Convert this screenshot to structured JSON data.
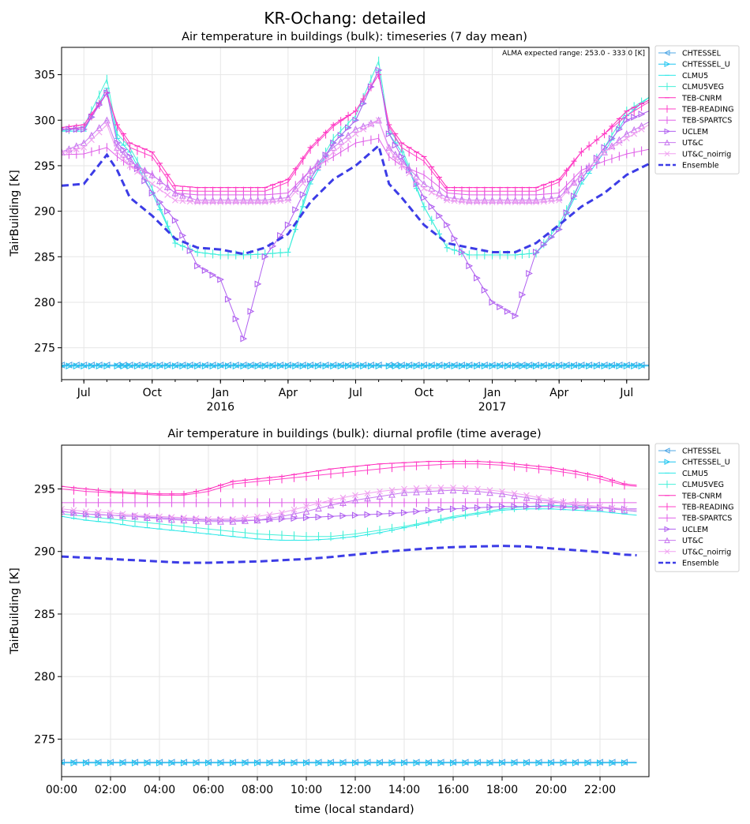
{
  "figure": {
    "suptitle": "KR-Ochang: detailed"
  },
  "chart_data": [
    {
      "type": "line",
      "title": "Air temperature in buildings (bulk): timeseries (7 day mean)",
      "xlabel": "",
      "ylabel": "TairBuilding [K]",
      "annotation": "ALMA expected range: 253.0 - 333.0 [K]",
      "xlim": [
        "2015-06-01",
        "2017-07-31"
      ],
      "ylim": [
        271.5,
        308
      ],
      "yticks": [
        275,
        280,
        285,
        290,
        295,
        300,
        305
      ],
      "xticks": [
        {
          "date": "2015-07-01",
          "label": "Jul",
          "sub": ""
        },
        {
          "date": "2015-10-01",
          "label": "Oct",
          "sub": ""
        },
        {
          "date": "2016-01-01",
          "label": "Jan",
          "sub": "2016"
        },
        {
          "date": "2016-04-01",
          "label": "Apr",
          "sub": ""
        },
        {
          "date": "2016-07-01",
          "label": "Jul",
          "sub": ""
        },
        {
          "date": "2016-10-01",
          "label": "Oct",
          "sub": ""
        },
        {
          "date": "2017-01-01",
          "label": "Jan",
          "sub": "2017"
        },
        {
          "date": "2017-04-01",
          "label": "Apr",
          "sub": ""
        },
        {
          "date": "2017-07-01",
          "label": "Jul",
          "sub": ""
        }
      ],
      "legend_position": "outside-right",
      "grid": true,
      "x": [
        "2015-06-01",
        "2015-07-01",
        "2015-08-01",
        "2015-08-15",
        "2015-09-01",
        "2015-10-01",
        "2015-11-01",
        "2015-12-01",
        "2016-01-01",
        "2016-02-01",
        "2016-03-01",
        "2016-04-01",
        "2016-05-01",
        "2016-06-01",
        "2016-07-01",
        "2016-08-01",
        "2016-08-15",
        "2016-09-01",
        "2016-10-01",
        "2016-11-01",
        "2016-12-01",
        "2017-01-01",
        "2017-02-01",
        "2017-03-01",
        "2017-04-01",
        "2017-05-01",
        "2017-06-01",
        "2017-07-01",
        "2017-07-31"
      ],
      "series": [
        {
          "name": "CHTESSEL",
          "color": "#52a8e6",
          "style": "solid",
          "marker": "tri-left",
          "values": [
            273.1,
            273.1,
            273.1,
            273.1,
            273.1,
            273.1,
            273.1,
            273.1,
            273.1,
            273.1,
            273.1,
            273.1,
            273.1,
            273.1,
            273.1,
            273.1,
            273.1,
            273.1,
            273.1,
            273.1,
            273.1,
            273.1,
            273.1,
            273.1,
            273.1,
            273.1,
            273.1,
            273.1,
            273.1
          ]
        },
        {
          "name": "CHTESSEL_U",
          "color": "#1fc6f0",
          "style": "solid",
          "marker": "tri-right",
          "values": [
            273.0,
            273.0,
            273.0,
            273.0,
            273.0,
            273.0,
            273.0,
            273.0,
            273.0,
            273.0,
            273.0,
            273.0,
            273.0,
            273.0,
            273.0,
            273.0,
            273.0,
            273.0,
            273.0,
            273.0,
            273.0,
            273.0,
            273.0,
            273.0,
            273.0,
            273.0,
            273.0,
            273.0,
            273.0
          ]
        },
        {
          "name": "CLMU5",
          "color": "#2ee8e8",
          "style": "solid",
          "marker": "dash",
          "values": [
            298.8,
            298.8,
            303.5,
            298.0,
            296.5,
            292.0,
            286.5,
            285.5,
            285.2,
            285.2,
            285.3,
            285.5,
            293.0,
            297.5,
            300.0,
            305.5,
            298.5,
            296.5,
            290.5,
            286.0,
            285.2,
            285.2,
            285.2,
            285.4,
            288.0,
            293.0,
            296.5,
            300.5,
            302.5
          ]
        },
        {
          "name": "CLMU5VEG",
          "color": "#44f0d8",
          "style": "solid",
          "marker": "vbar",
          "values": [
            298.8,
            299.3,
            304.5,
            298.5,
            297.0,
            292.5,
            286.5,
            285.5,
            285.2,
            285.2,
            285.3,
            285.5,
            293.5,
            298.0,
            300.5,
            306.5,
            299.0,
            297.0,
            290.5,
            286.0,
            285.2,
            285.2,
            285.2,
            285.4,
            288.5,
            293.5,
            297.0,
            301.0,
            302.5
          ]
        },
        {
          "name": "TEB-CNRM",
          "color": "#ff2cbc",
          "style": "solid",
          "marker": "dash",
          "values": [
            299.2,
            299.5,
            303.0,
            299.5,
            297.5,
            296.5,
            292.8,
            292.6,
            292.6,
            292.6,
            292.6,
            293.5,
            297.0,
            299.5,
            301.0,
            305.0,
            299.5,
            297.5,
            296.0,
            292.6,
            292.6,
            292.6,
            292.6,
            292.6,
            293.5,
            296.5,
            298.5,
            301.0,
            302.2
          ]
        },
        {
          "name": "TEB-READING",
          "color": "#ff40c8",
          "style": "solid",
          "marker": "vbar",
          "values": [
            299.0,
            299.2,
            303.0,
            299.3,
            297.0,
            296.0,
            292.3,
            292.2,
            292.2,
            292.2,
            292.2,
            293.2,
            296.8,
            299.3,
            301.0,
            305.0,
            299.3,
            297.0,
            295.5,
            292.3,
            292.2,
            292.2,
            292.2,
            292.2,
            293.2,
            296.5,
            298.5,
            300.5,
            302.0
          ]
        },
        {
          "name": "TEB-SPARTCS",
          "color": "#e060e8",
          "style": "solid",
          "marker": "vbar",
          "values": [
            296.2,
            296.3,
            297.0,
            296.0,
            295.0,
            294.0,
            292.0,
            291.8,
            291.8,
            291.8,
            291.8,
            292.0,
            294.5,
            296.0,
            297.5,
            298.0,
            296.0,
            295.0,
            294.0,
            292.0,
            291.8,
            291.8,
            291.8,
            291.8,
            292.0,
            294.5,
            295.5,
            296.3,
            296.8
          ]
        },
        {
          "name": "UCLEM",
          "color": "#b060f0",
          "style": "solid",
          "marker": "tri-right",
          "values": [
            299.0,
            299.0,
            303.0,
            297.5,
            296.0,
            292.0,
            289.0,
            284.0,
            282.5,
            276.0,
            285.0,
            288.5,
            293.5,
            297.5,
            300.0,
            305.5,
            298.5,
            296.0,
            291.5,
            288.5,
            284.0,
            280.0,
            278.5,
            285.5,
            288.0,
            293.5,
            297.0,
            300.0,
            301.0
          ]
        },
        {
          "name": "UT&C",
          "color": "#c878f0",
          "style": "solid",
          "marker": "tri-up",
          "values": [
            296.5,
            297.5,
            300.0,
            297.0,
            295.5,
            294.0,
            292.0,
            291.2,
            291.2,
            291.2,
            291.2,
            291.5,
            294.5,
            297.0,
            299.0,
            300.0,
            297.0,
            295.5,
            293.0,
            291.5,
            291.2,
            291.2,
            291.2,
            291.2,
            291.5,
            294.0,
            296.5,
            298.5,
            299.8
          ]
        },
        {
          "name": "UT&C_noirrig",
          "color": "#f0a0f0",
          "style": "solid",
          "marker": "x",
          "values": [
            296.4,
            297.0,
            299.5,
            296.5,
            295.0,
            293.0,
            291.2,
            291.0,
            291.0,
            291.0,
            291.0,
            291.2,
            294.0,
            296.5,
            298.5,
            300.0,
            296.8,
            295.0,
            292.5,
            291.2,
            291.0,
            291.0,
            291.0,
            291.0,
            291.2,
            294.0,
            296.5,
            298.0,
            299.5
          ]
        },
        {
          "name": "Ensemble",
          "color": "#3c3ce6",
          "style": "dashed",
          "marker": "none",
          "values": [
            292.8,
            293.0,
            296.2,
            294.5,
            291.5,
            289.5,
            287.0,
            286.0,
            285.8,
            285.3,
            286.0,
            287.5,
            291.0,
            293.5,
            295.0,
            297.2,
            293.0,
            291.5,
            288.5,
            286.5,
            286.0,
            285.5,
            285.5,
            286.5,
            288.5,
            290.5,
            292.0,
            294.0,
            295.2
          ]
        }
      ]
    },
    {
      "type": "line",
      "title": "Air temperature in buildings (bulk): diurnal profile (time average)",
      "xlabel": "time (local standard)",
      "ylabel": "TairBuilding [K]",
      "xlim": [
        0,
        24
      ],
      "ylim": [
        272,
        298.5
      ],
      "yticks": [
        275,
        280,
        285,
        290,
        295
      ],
      "xticks": [
        {
          "value": 0,
          "label": "00:00"
        },
        {
          "value": 2,
          "label": "02:00"
        },
        {
          "value": 4,
          "label": "04:00"
        },
        {
          "value": 6,
          "label": "06:00"
        },
        {
          "value": 8,
          "label": "08:00"
        },
        {
          "value": 10,
          "label": "10:00"
        },
        {
          "value": 12,
          "label": "12:00"
        },
        {
          "value": 14,
          "label": "14:00"
        },
        {
          "value": 16,
          "label": "16:00"
        },
        {
          "value": 18,
          "label": "18:00"
        },
        {
          "value": 20,
          "label": "20:00"
        },
        {
          "value": 22,
          "label": "22:00"
        }
      ],
      "legend_position": "outside-right",
      "grid": true,
      "x": [
        0,
        1,
        2,
        3,
        4,
        5,
        6,
        7,
        8,
        9,
        10,
        11,
        12,
        13,
        14,
        15,
        16,
        17,
        18,
        19,
        20,
        21,
        22,
        23,
        23.5
      ],
      "series": [
        {
          "name": "CHTESSEL",
          "color": "#52a8e6",
          "style": "solid",
          "marker": "tri-left",
          "values": [
            273.15,
            273.15,
            273.15,
            273.15,
            273.15,
            273.15,
            273.15,
            273.15,
            273.15,
            273.15,
            273.15,
            273.15,
            273.15,
            273.15,
            273.15,
            273.15,
            273.15,
            273.15,
            273.15,
            273.15,
            273.15,
            273.15,
            273.15,
            273.15,
            273.15
          ]
        },
        {
          "name": "CHTESSEL_U",
          "color": "#1fc6f0",
          "style": "solid",
          "marker": "tri-right",
          "values": [
            273.1,
            273.1,
            273.1,
            273.1,
            273.1,
            273.1,
            273.1,
            273.1,
            273.1,
            273.1,
            273.1,
            273.1,
            273.1,
            273.1,
            273.1,
            273.1,
            273.1,
            273.1,
            273.1,
            273.1,
            273.1,
            273.1,
            273.1,
            273.1,
            273.1
          ]
        },
        {
          "name": "CLMU5",
          "color": "#2ee8e8",
          "style": "solid",
          "marker": "dash",
          "values": [
            292.8,
            292.5,
            292.3,
            292.0,
            291.8,
            291.6,
            291.4,
            291.2,
            291.0,
            290.9,
            290.9,
            291.0,
            291.2,
            291.5,
            291.9,
            292.3,
            292.7,
            293.0,
            293.3,
            293.4,
            293.4,
            293.3,
            293.2,
            293.0,
            292.9
          ]
        },
        {
          "name": "CLMU5VEG",
          "color": "#44f0d8",
          "style": "solid",
          "marker": "vbar",
          "values": [
            293.0,
            292.8,
            292.6,
            292.4,
            292.2,
            292.0,
            291.8,
            291.6,
            291.4,
            291.3,
            291.2,
            291.2,
            291.4,
            291.7,
            292.0,
            292.4,
            292.8,
            293.1,
            293.4,
            293.6,
            293.7,
            293.6,
            293.5,
            293.3,
            293.2
          ]
        },
        {
          "name": "TEB-CNRM",
          "color": "#ff2cbc",
          "style": "solid",
          "marker": "dash",
          "values": [
            295.2,
            295.0,
            294.8,
            294.7,
            294.6,
            294.6,
            295.0,
            295.6,
            295.8,
            296.0,
            296.3,
            296.6,
            296.8,
            297.0,
            297.1,
            297.2,
            297.2,
            297.2,
            297.1,
            296.9,
            296.7,
            296.4,
            296.0,
            295.4,
            295.3
          ]
        },
        {
          "name": "TEB-READING",
          "color": "#ff40c8",
          "style": "solid",
          "marker": "vbar",
          "values": [
            295.0,
            294.8,
            294.7,
            294.6,
            294.5,
            294.5,
            294.8,
            295.4,
            295.6,
            295.8,
            296.0,
            296.2,
            296.4,
            296.6,
            296.8,
            296.9,
            297.0,
            297.0,
            296.9,
            296.7,
            296.5,
            296.2,
            295.8,
            295.3,
            295.2
          ]
        },
        {
          "name": "TEB-SPARTCS",
          "color": "#e060e8",
          "style": "solid",
          "marker": "vbar",
          "values": [
            293.9,
            293.9,
            293.9,
            293.9,
            293.9,
            293.9,
            293.9,
            293.9,
            293.9,
            293.9,
            293.9,
            293.9,
            293.9,
            293.9,
            293.9,
            293.9,
            293.9,
            293.9,
            293.9,
            293.9,
            293.9,
            293.9,
            293.9,
            293.9,
            293.9
          ]
        },
        {
          "name": "UCLEM",
          "color": "#b060f0",
          "style": "solid",
          "marker": "tri-right",
          "values": [
            293.2,
            293.0,
            292.9,
            292.8,
            292.7,
            292.6,
            292.5,
            292.5,
            292.5,
            292.6,
            292.7,
            292.8,
            292.9,
            293.0,
            293.1,
            293.3,
            293.4,
            293.5,
            293.6,
            293.6,
            293.6,
            293.5,
            293.5,
            293.4,
            293.4
          ]
        },
        {
          "name": "UT&C",
          "color": "#c878f0",
          "style": "solid",
          "marker": "tri-up",
          "values": [
            293.2,
            293.0,
            292.9,
            292.8,
            292.6,
            292.5,
            292.4,
            292.4,
            292.5,
            292.8,
            293.2,
            293.7,
            294.1,
            294.4,
            294.7,
            294.8,
            294.9,
            294.8,
            294.6,
            294.3,
            294.0,
            293.7,
            293.5,
            293.3,
            293.2
          ]
        },
        {
          "name": "UT&C_noirrig",
          "color": "#f0a0f0",
          "style": "solid",
          "marker": "x",
          "values": [
            293.4,
            293.2,
            293.1,
            292.9,
            292.8,
            292.7,
            292.6,
            292.6,
            292.8,
            293.1,
            293.6,
            294.1,
            294.5,
            294.8,
            295.0,
            295.1,
            295.1,
            295.0,
            294.8,
            294.5,
            294.1,
            293.8,
            293.6,
            293.4,
            293.3
          ]
        },
        {
          "name": "Ensemble",
          "color": "#3c3ce6",
          "style": "dashed",
          "marker": "none",
          "values": [
            289.6,
            289.5,
            289.4,
            289.3,
            289.2,
            289.1,
            289.1,
            289.15,
            289.2,
            289.3,
            289.4,
            289.55,
            289.75,
            289.95,
            290.1,
            290.25,
            290.35,
            290.4,
            290.45,
            290.4,
            290.25,
            290.1,
            289.95,
            289.75,
            289.7
          ]
        }
      ]
    }
  ]
}
